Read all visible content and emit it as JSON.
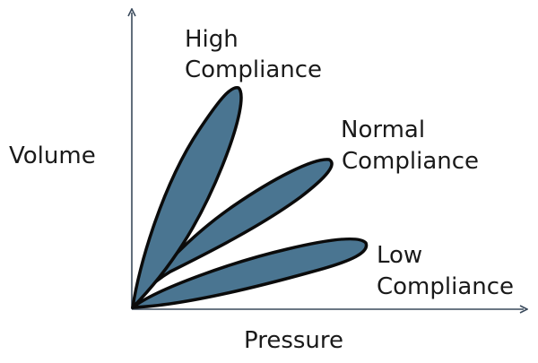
{
  "diagram": {
    "y_axis_label": "Volume",
    "x_axis_label": "Pressure",
    "loop_fill_color": "#4a7591",
    "loop_stroke_color": "#0b0b0b",
    "axis_color": "#3a4a5c",
    "curves": [
      {
        "id": "high",
        "label_line1": "High",
        "label_line2": "Compliance"
      },
      {
        "id": "normal",
        "label_line1": "Normal",
        "label_line2": "Compliance"
      },
      {
        "id": "low",
        "label_line1": "Low",
        "label_line2": "Compliance"
      }
    ]
  }
}
